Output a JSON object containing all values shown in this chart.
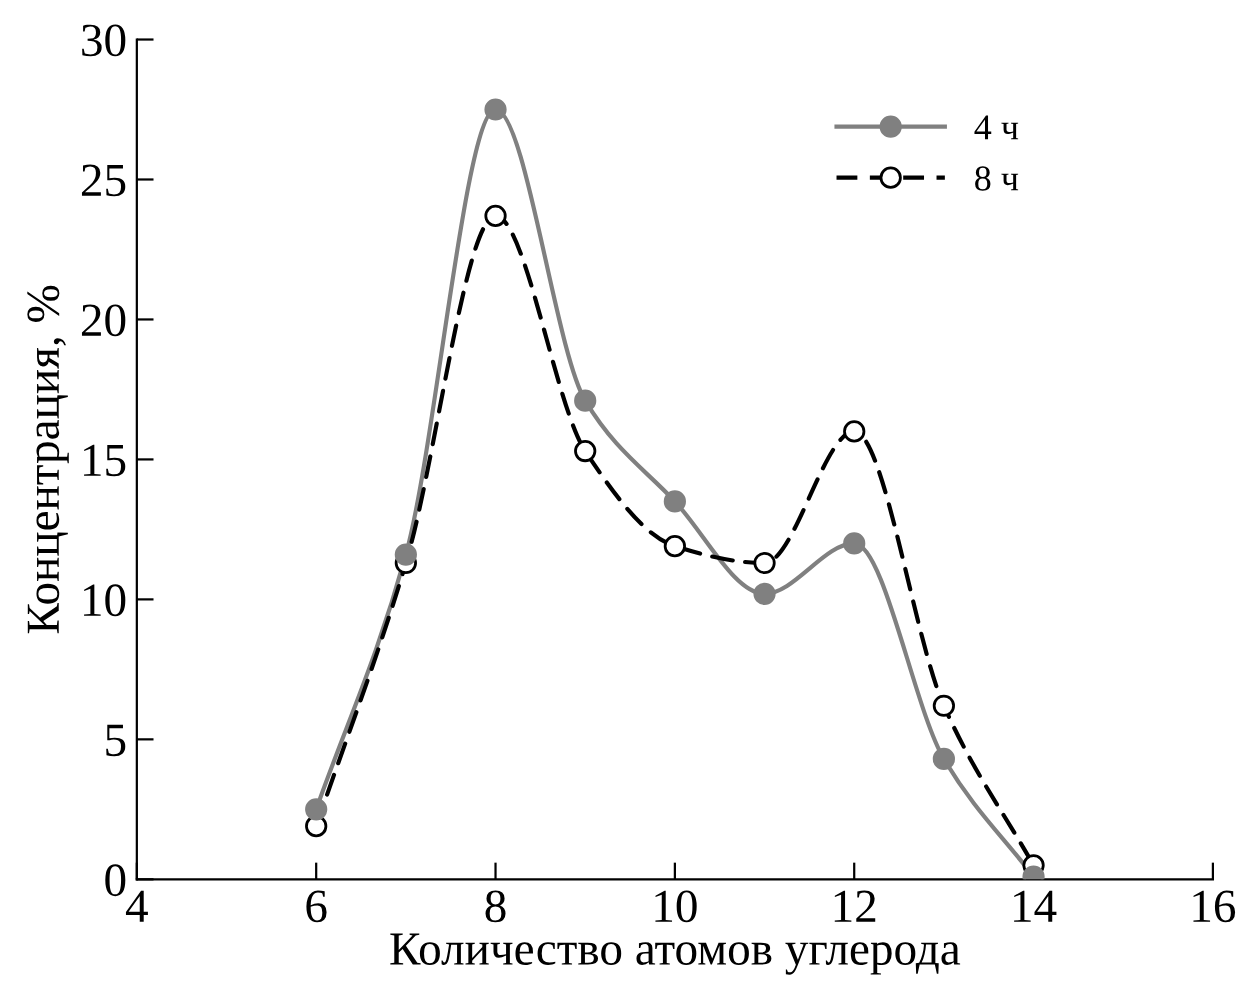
{
  "chart_data": {
    "type": "line",
    "xlabel": "Количество атомов углерода",
    "ylabel": "Концентрация, %",
    "x": [
      6,
      7,
      8,
      9,
      10,
      11,
      12,
      13,
      14
    ],
    "series": [
      {
        "name": "4 ч",
        "color": "#808080",
        "line_style": "solid",
        "values": [
          2.5,
          11.6,
          27.5,
          17.1,
          13.5,
          10.2,
          12.0,
          4.3,
          0.1
        ]
      },
      {
        "name": "8 ч",
        "color": "#000000",
        "line_style": "dashed",
        "values": [
          1.9,
          11.3,
          23.7,
          15.3,
          11.9,
          11.3,
          16.0,
          6.2,
          0.5
        ]
      }
    ],
    "xlim": [
      4,
      16
    ],
    "xticks": [
      4,
      6,
      8,
      10,
      12,
      14,
      16
    ],
    "ylim": [
      0,
      30
    ],
    "yticks": [
      0,
      5,
      10,
      15,
      20,
      25,
      30
    ],
    "marker": "circle",
    "grid": false,
    "legend": "top right"
  }
}
